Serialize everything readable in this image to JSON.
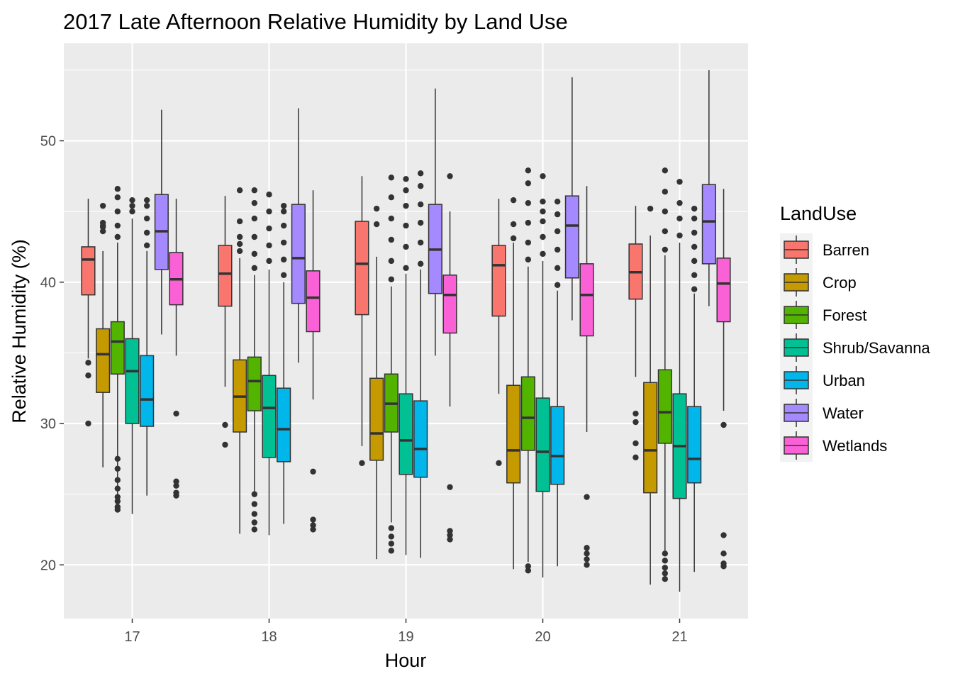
{
  "chart_data": {
    "type": "boxplot",
    "title": "2017 Late Afternoon Relative Humidity by Land Use",
    "xlabel": "Hour",
    "ylabel": "Relative Humidity (%)",
    "categories": [
      "17",
      "18",
      "19",
      "20",
      "21"
    ],
    "ylim": [
      16.2,
      56.9
    ],
    "yticks": [
      20,
      30,
      40,
      50
    ],
    "grid": true,
    "legend": {
      "title": "LandUse",
      "position": "right"
    },
    "series": [
      {
        "name": "Barren",
        "color": "#F8766D",
        "boxes": [
          {
            "min": 34.6,
            "q1": 39.1,
            "median": 41.6,
            "q3": 42.5,
            "max": 45.9,
            "outliers": [
              34.3,
              33.4,
              30.0
            ]
          },
          {
            "min": 32.6,
            "q1": 38.3,
            "median": 40.6,
            "q3": 42.6,
            "max": 46.1,
            "outliers": [
              29.9,
              28.5
            ]
          },
          {
            "min": 28.4,
            "q1": 37.7,
            "median": 41.3,
            "q3": 44.3,
            "max": 47.5,
            "outliers": [
              27.2
            ]
          },
          {
            "min": 32.1,
            "q1": 37.6,
            "median": 41.2,
            "q3": 42.6,
            "max": 45.9,
            "outliers": [
              27.2
            ]
          },
          {
            "min": 33.3,
            "q1": 38.8,
            "median": 40.7,
            "q3": 42.7,
            "max": 45.4,
            "outliers": [
              30.7,
              30.1,
              28.6,
              27.6
            ]
          }
        ]
      },
      {
        "name": "Crop",
        "color": "#C49A00",
        "boxes": [
          {
            "min": 26.9,
            "q1": 32.2,
            "median": 34.9,
            "q3": 36.7,
            "max": 42.2,
            "outliers": [
              43.6,
              44.0,
              45.4,
              43.9,
              44.2
            ]
          },
          {
            "min": 22.2,
            "q1": 29.4,
            "median": 31.9,
            "q3": 34.5,
            "max": 41.7,
            "outliers": [
              42.2,
              42.7,
              43.2,
              44.3,
              46.5
            ]
          },
          {
            "min": 20.4,
            "q1": 27.4,
            "median": 29.3,
            "q3": 33.2,
            "max": 41.8,
            "outliers": [
              44.1,
              45.2
            ]
          },
          {
            "min": 19.7,
            "q1": 25.8,
            "median": 28.1,
            "q3": 32.7,
            "max": 42.8,
            "outliers": [
              43.1,
              44.1,
              45.8
            ]
          },
          {
            "min": 18.6,
            "q1": 25.1,
            "median": 28.1,
            "q3": 32.9,
            "max": 43.3,
            "outliers": [
              45.2
            ]
          }
        ]
      },
      {
        "name": "Forest",
        "color": "#53B400",
        "boxes": [
          {
            "min": 24.2,
            "q1": 33.5,
            "median": 35.8,
            "q3": 37.2,
            "max": 42.8,
            "outliers": [
              23.9,
              24.1,
              24.5,
              24.8,
              25.4,
              26.0,
              26.8,
              27.5,
              43.2,
              44.0,
              45.0,
              46.0,
              46.6
            ]
          },
          {
            "min": 24.8,
            "q1": 30.9,
            "median": 33.0,
            "q3": 34.7,
            "max": 40.5,
            "outliers": [
              22.5,
              23.0,
              23.6,
              24.3,
              25.0,
              41.0,
              42.0,
              43.2,
              44.5,
              45.6,
              46.5
            ]
          },
          {
            "min": 23.0,
            "q1": 29.4,
            "median": 31.4,
            "q3": 33.5,
            "max": 39.7,
            "outliers": [
              21.0,
              21.5,
              22.0,
              22.6,
              40.2,
              41.5,
              43.0,
              44.5,
              46.0,
              47.4
            ]
          },
          {
            "min": 20.2,
            "q1": 28.1,
            "median": 30.4,
            "q3": 33.3,
            "max": 41.1,
            "outliers": [
              19.6,
              19.9,
              41.6,
              42.8,
              44.2,
              45.6,
              47.0,
              47.9
            ]
          },
          {
            "min": 21.0,
            "q1": 28.6,
            "median": 30.8,
            "q3": 33.8,
            "max": 41.9,
            "outliers": [
              19.0,
              19.4,
              19.8,
              20.3,
              20.8,
              42.3,
              43.6,
              45.0,
              46.4,
              47.9
            ]
          }
        ]
      },
      {
        "name": "Shrub/Savanna",
        "color": "#00C094",
        "boxes": [
          {
            "min": 23.6,
            "q1": 30.0,
            "median": 33.7,
            "q3": 36.0,
            "max": 44.5,
            "outliers": [
              45.0,
              45.4,
              45.8
            ]
          },
          {
            "min": 22.1,
            "q1": 27.6,
            "median": 31.1,
            "q3": 33.4,
            "max": 40.9,
            "outliers": [
              41.5,
              42.6,
              43.8,
              45.0,
              46.2
            ]
          },
          {
            "min": 20.7,
            "q1": 26.4,
            "median": 28.8,
            "q3": 32.1,
            "max": 40.6,
            "outliers": [
              41.0,
              42.5,
              44.0,
              45.4,
              46.5,
              47.3
            ]
          },
          {
            "min": 19.1,
            "q1": 25.2,
            "median": 28.0,
            "q3": 31.8,
            "max": 41.5,
            "outliers": [
              42.0,
              43.2,
              44.3,
              45.0,
              45.7,
              47.5
            ]
          },
          {
            "min": 18.1,
            "q1": 24.7,
            "median": 28.4,
            "q3": 32.1,
            "max": 42.8,
            "outliers": [
              43.3,
              44.5,
              45.6,
              47.1
            ]
          }
        ]
      },
      {
        "name": "Urban",
        "color": "#00B6EB",
        "boxes": [
          {
            "min": 24.9,
            "q1": 29.8,
            "median": 31.7,
            "q3": 34.8,
            "max": 42.2,
            "outliers": [
              42.6,
              43.5,
              44.5,
              45.4,
              45.8
            ]
          },
          {
            "min": 22.9,
            "q1": 27.3,
            "median": 29.6,
            "q3": 32.5,
            "max": 40.0,
            "outliers": [
              40.5,
              41.6,
              42.8,
              44.0,
              45.0,
              45.4
            ]
          },
          {
            "min": 20.5,
            "q1": 26.2,
            "median": 28.2,
            "q3": 31.6,
            "max": 40.9,
            "outliers": [
              41.3,
              42.8,
              44.2,
              45.5,
              46.8,
              47.7
            ]
          },
          {
            "min": 19.9,
            "q1": 25.7,
            "median": 27.7,
            "q3": 31.2,
            "max": 39.4,
            "outliers": [
              39.8,
              41.0,
              42.3,
              43.6,
              44.8,
              45.7
            ]
          },
          {
            "min": 19.5,
            "q1": 25.8,
            "median": 27.5,
            "q3": 31.2,
            "max": 39.2,
            "outliers": [
              39.5,
              40.5,
              41.5,
              42.5,
              43.5,
              44.5,
              45.2
            ]
          }
        ]
      },
      {
        "name": "Water",
        "color": "#A58AFF",
        "boxes": [
          {
            "min": 36.3,
            "q1": 40.9,
            "median": 43.6,
            "q3": 46.2,
            "max": 52.2,
            "outliers": []
          },
          {
            "min": 34.3,
            "q1": 38.5,
            "median": 41.7,
            "q3": 45.5,
            "max": 52.3,
            "outliers": []
          },
          {
            "min": 34.8,
            "q1": 39.2,
            "median": 42.3,
            "q3": 45.5,
            "max": 53.7,
            "outliers": []
          },
          {
            "min": 37.3,
            "q1": 40.3,
            "median": 44.0,
            "q3": 46.1,
            "max": 54.5,
            "outliers": []
          },
          {
            "min": 38.3,
            "q1": 41.3,
            "median": 44.3,
            "q3": 46.9,
            "max": 55.0,
            "outliers": []
          }
        ]
      },
      {
        "name": "Wetlands",
        "color": "#FB61D7",
        "boxes": [
          {
            "min": 34.8,
            "q1": 38.4,
            "median": 40.2,
            "q3": 42.1,
            "max": 45.9,
            "outliers": [
              30.7,
              25.9,
              25.6,
              25.1,
              24.9
            ]
          },
          {
            "min": 31.7,
            "q1": 36.5,
            "median": 38.9,
            "q3": 40.8,
            "max": 46.5,
            "outliers": [
              26.6,
              23.2,
              22.8,
              22.5
            ]
          },
          {
            "min": 31.2,
            "q1": 36.4,
            "median": 39.1,
            "q3": 40.5,
            "max": 45.0,
            "outliers": [
              47.5,
              25.5,
              22.4,
              22.1,
              21.8
            ]
          },
          {
            "min": 29.4,
            "q1": 36.2,
            "median": 39.1,
            "q3": 41.3,
            "max": 46.8,
            "outliers": [
              24.8,
              21.2,
              20.8,
              20.4,
              20.0
            ]
          },
          {
            "min": 30.9,
            "q1": 37.2,
            "median": 39.9,
            "q3": 41.7,
            "max": 46.6,
            "outliers": [
              29.9,
              22.1,
              20.8,
              20.1,
              19.9
            ]
          }
        ]
      }
    ]
  }
}
